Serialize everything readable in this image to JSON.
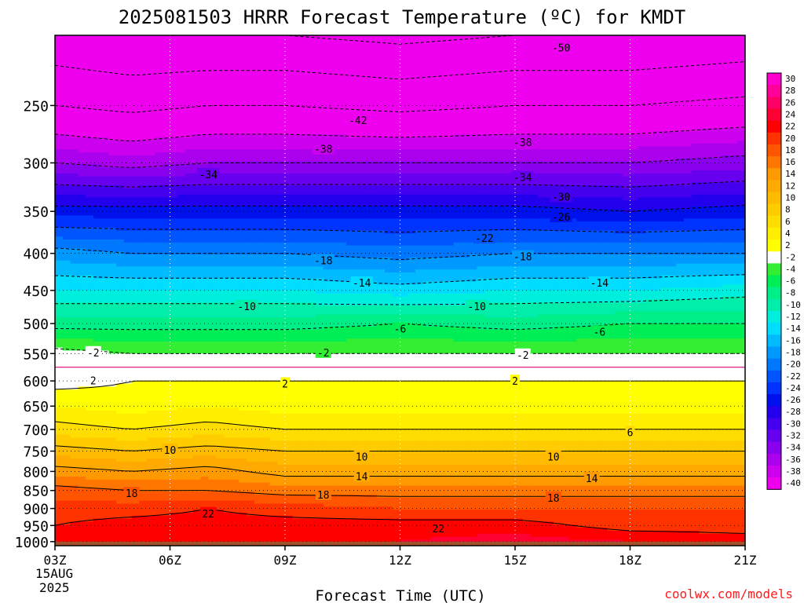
{
  "chart_data": {
    "type": "heatmap",
    "title": "2025081503 HRRR Forecast Temperature (ºC) for KMDT",
    "xlabel": "Forecast Time (UTC)",
    "credit": "coolwx.com/models",
    "x_ticks": [
      "03Z",
      "06Z",
      "09Z",
      "12Z",
      "15Z",
      "18Z",
      "21Z"
    ],
    "x_hours": [
      3,
      6,
      9,
      12,
      15,
      18,
      21
    ],
    "x_range": [
      3,
      21
    ],
    "date_label": [
      "15AUG",
      "2025"
    ],
    "y_ticks": [
      250,
      300,
      350,
      400,
      450,
      500,
      550,
      600,
      650,
      700,
      750,
      800,
      850,
      900,
      950,
      1000
    ],
    "y_range_hpa": [
      200,
      1013
    ],
    "y_scale": "log-pressure",
    "colorbar_levels": [
      30,
      28,
      26,
      24,
      22,
      20,
      18,
      16,
      14,
      12,
      10,
      8,
      6,
      4,
      2,
      -2,
      -4,
      -6,
      -8,
      -10,
      -12,
      -14,
      -16,
      -18,
      -20,
      -22,
      -24,
      -26,
      -28,
      -30,
      -32,
      -34,
      -36,
      -38,
      -40
    ],
    "colorbar_colors": [
      "#ff00cc",
      "#ff0099",
      "#ff0066",
      "#ff0033",
      "#ff0000",
      "#ff3300",
      "#ff5500",
      "#ff7700",
      "#ff9900",
      "#ffaa00",
      "#ffbb00",
      "#ffcc00",
      "#ffdd00",
      "#ffee00",
      "#ffff00",
      "#ffffff",
      "#33ee33",
      "#00ee55",
      "#00ee88",
      "#00eeaa",
      "#00eedd",
      "#00ddff",
      "#00bbff",
      "#0099ff",
      "#0077ff",
      "#0055ff",
      "#0033ff",
      "#0011ee",
      "#2200ee",
      "#4400ee",
      "#6600ee",
      "#8800ee",
      "#aa00ee",
      "#cc00ee",
      "#ee00ee"
    ],
    "profile_columns": [
      "hour",
      "T_1000",
      "T_950",
      "T_900",
      "T_850",
      "T_800",
      "T_750",
      "T_700",
      "T_650",
      "T_600",
      "T_550",
      "T_500",
      "T_450",
      "T_400",
      "T_350",
      "T_300",
      "T_250",
      "T_200"
    ],
    "profiles": [
      [
        3,
        24,
        22,
        21,
        19,
        15,
        11,
        7,
        4,
        1,
        -1,
        -7,
        -12,
        -17,
        -25,
        -34,
        -42,
        -49
      ],
      [
        5,
        24,
        23,
        21,
        18,
        14,
        10,
        6,
        3,
        2,
        -2,
        -7,
        -12,
        -18,
        -25,
        -35,
        -43,
        -50
      ],
      [
        7,
        24,
        23,
        22,
        18,
        15,
        11,
        7,
        4,
        2,
        -2,
        -7,
        -12,
        -18,
        -25,
        -34,
        -42,
        -50
      ],
      [
        9,
        24,
        23,
        21,
        17,
        13,
        10,
        6,
        3,
        2,
        -2,
        -7,
        -12,
        -18,
        -25,
        -34,
        -42,
        -50
      ],
      [
        12,
        24,
        23,
        20,
        17,
        13,
        10,
        6,
        3,
        2,
        -2,
        -6,
        -13,
        -19,
        -25,
        -34,
        -43,
        -51
      ],
      [
        15,
        25,
        23,
        20,
        17,
        13,
        10,
        6,
        3,
        2,
        -2,
        -7,
        -12,
        -18,
        -25,
        -34,
        -42,
        -50
      ],
      [
        18,
        24,
        21,
        20,
        17,
        13,
        10,
        6,
        3,
        2,
        -2,
        -6,
        -12,
        -18,
        -26,
        -34,
        -42,
        -50
      ],
      [
        21,
        23,
        21,
        20,
        17,
        13,
        10,
        6,
        3,
        2,
        -2,
        -6,
        -11,
        -18,
        -25,
        -33,
        -41,
        -49
      ]
    ],
    "contour_labels": [
      {
        "text": "-50",
        "hour": 16.2,
        "hpa": 208
      },
      {
        "text": "-42",
        "hour": 10.9,
        "hpa": 262
      },
      {
        "text": "-38",
        "hour": 10.0,
        "hpa": 287
      },
      {
        "text": "-38",
        "hour": 15.2,
        "hpa": 281
      },
      {
        "text": "-34",
        "hour": 7.0,
        "hpa": 311
      },
      {
        "text": "-34",
        "hour": 15.2,
        "hpa": 314
      },
      {
        "text": "-30",
        "hour": 16.2,
        "hpa": 334
      },
      {
        "text": "-26",
        "hour": 16.2,
        "hpa": 356
      },
      {
        "text": "-22",
        "hour": 14.2,
        "hpa": 381
      },
      {
        "text": "-18",
        "hour": 10.0,
        "hpa": 409
      },
      {
        "text": "-18",
        "hour": 15.2,
        "hpa": 404
      },
      {
        "text": "-14",
        "hour": 11.0,
        "hpa": 439
      },
      {
        "text": "-14",
        "hour": 17.2,
        "hpa": 439
      },
      {
        "text": "-10",
        "hour": 8.0,
        "hpa": 473
      },
      {
        "text": "-10",
        "hour": 14.0,
        "hpa": 473
      },
      {
        "text": "-6",
        "hour": 12.0,
        "hpa": 508
      },
      {
        "text": "-6",
        "hour": 17.2,
        "hpa": 513
      },
      {
        "text": "-2",
        "hour": 4.0,
        "hpa": 548
      },
      {
        "text": "-2",
        "hour": 10.0,
        "hpa": 548
      },
      {
        "text": "-2",
        "hour": 15.2,
        "hpa": 552
      },
      {
        "text": "2",
        "hour": 4.0,
        "hpa": 599
      },
      {
        "text": "2",
        "hour": 9.0,
        "hpa": 605
      },
      {
        "text": "2",
        "hour": 15.0,
        "hpa": 600
      },
      {
        "text": "6",
        "hour": 18.0,
        "hpa": 706
      },
      {
        "text": "10",
        "hour": 6.0,
        "hpa": 747
      },
      {
        "text": "10",
        "hour": 11.0,
        "hpa": 763
      },
      {
        "text": "10",
        "hour": 16.0,
        "hpa": 763
      },
      {
        "text": "14",
        "hour": 11.0,
        "hpa": 812
      },
      {
        "text": "14",
        "hour": 17.0,
        "hpa": 817
      },
      {
        "text": "18",
        "hour": 5.0,
        "hpa": 857
      },
      {
        "text": "18",
        "hour": 10.0,
        "hpa": 861
      },
      {
        "text": "18",
        "hour": 16.0,
        "hpa": 870
      },
      {
        "text": "22",
        "hour": 7.0,
        "hpa": 914
      },
      {
        "text": "22",
        "hour": 13.0,
        "hpa": 959
      }
    ],
    "ground_color": "#a0522d",
    "ground_surface_hpa": 1000
  }
}
